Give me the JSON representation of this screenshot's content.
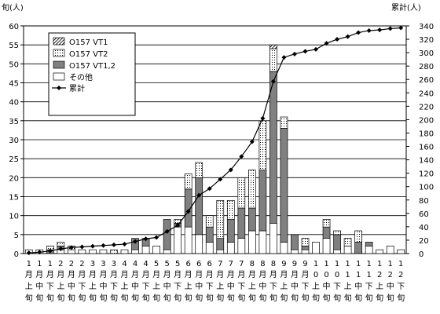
{
  "chart_data": {
    "type": "bar",
    "ylabel_left": "旬(人)",
    "ylabel_right": "累計(人)",
    "ylim_left": [
      0,
      60
    ],
    "ylim_right": [
      0,
      340
    ],
    "yticks_left": [
      "0",
      "5",
      "10",
      "15",
      "20",
      "25",
      "30",
      "35",
      "40",
      "45",
      "50",
      "55",
      "60"
    ],
    "yticks_right": [
      "0",
      "20",
      "40",
      "60",
      "80",
      "100",
      "120",
      "140",
      "160",
      "180",
      "200",
      "220",
      "240",
      "260",
      "280",
      "300",
      "320",
      "340"
    ],
    "categories": [
      [
        "1",
        "月",
        "上",
        "旬"
      ],
      [
        "1",
        "月",
        "中",
        "旬"
      ],
      [
        "1",
        "月",
        "下",
        "旬"
      ],
      [
        "2",
        "月",
        "上",
        "旬"
      ],
      [
        "2",
        "月",
        "中",
        "旬"
      ],
      [
        "2",
        "月",
        "下",
        "旬"
      ],
      [
        "3",
        "月",
        "上",
        "旬"
      ],
      [
        "3",
        "月",
        "中",
        "旬"
      ],
      [
        "3",
        "月",
        "下",
        "旬"
      ],
      [
        "4",
        "月",
        "上",
        "旬"
      ],
      [
        "4",
        "月",
        "中",
        "旬"
      ],
      [
        "4",
        "月",
        "下",
        "旬"
      ],
      [
        "5",
        "月",
        "上",
        "旬"
      ],
      [
        "5",
        "月",
        "中",
        "旬"
      ],
      [
        "5",
        "月",
        "下",
        "旬"
      ],
      [
        "6",
        "月",
        "上",
        "旬"
      ],
      [
        "6",
        "月",
        "中",
        "旬"
      ],
      [
        "6",
        "月",
        "下",
        "旬"
      ],
      [
        "7",
        "月",
        "上",
        "旬"
      ],
      [
        "7",
        "月",
        "中",
        "旬"
      ],
      [
        "7",
        "月",
        "下",
        "旬"
      ],
      [
        "8",
        "月",
        "上",
        "旬"
      ],
      [
        "8",
        "月",
        "中",
        "旬"
      ],
      [
        "8",
        "月",
        "下",
        "旬"
      ],
      [
        "9",
        "月",
        "上",
        "旬"
      ],
      [
        "9",
        "月",
        "中",
        "旬"
      ],
      [
        "9",
        "月",
        "下",
        "旬"
      ],
      [
        "10",
        "月",
        "上",
        "旬"
      ],
      [
        "10",
        "月",
        "中",
        "旬"
      ],
      [
        "10",
        "月",
        "下",
        "旬"
      ],
      [
        "11",
        "月",
        "上",
        "旬"
      ],
      [
        "11",
        "月",
        "中",
        "旬"
      ],
      [
        "11",
        "月",
        "下",
        "旬"
      ],
      [
        "12",
        "月",
        "上",
        "旬"
      ],
      [
        "12",
        "月",
        "中",
        "旬"
      ],
      [
        "12",
        "月",
        "下",
        "旬"
      ]
    ],
    "series": [
      {
        "name": "O157 VT1",
        "pattern": "hatch",
        "values": [
          0,
          0,
          0,
          0,
          0,
          0,
          0,
          0,
          0,
          0,
          0,
          0,
          0,
          0,
          0,
          0,
          0,
          0,
          0,
          0,
          0,
          0,
          0,
          1,
          0,
          0,
          0,
          0,
          0,
          0,
          0,
          0,
          0,
          0,
          0,
          0
        ]
      },
      {
        "name": "O157 VT2",
        "pattern": "dots",
        "values": [
          0,
          0,
          1,
          1,
          1,
          0,
          0,
          0,
          1,
          0,
          0,
          0,
          0,
          0,
          1,
          4,
          4,
          3,
          10,
          5,
          8,
          10,
          13,
          6,
          3,
          0,
          2,
          0,
          2,
          1,
          2,
          3,
          0,
          0,
          0,
          0
        ]
      },
      {
        "name": "O157 VT1,2",
        "pattern": "solid",
        "color": "#808080",
        "values": [
          0,
          0,
          1,
          1,
          0,
          0,
          0,
          0,
          0,
          0,
          3,
          2,
          0,
          8,
          1,
          10,
          15,
          4,
          3,
          6,
          8,
          6,
          16,
          40,
          30,
          4,
          1,
          0,
          3,
          4,
          0,
          3,
          1,
          0,
          0,
          0
        ]
      },
      {
        "name": "その他",
        "pattern": "empty",
        "values": [
          1,
          1,
          0,
          1,
          1,
          1,
          1,
          1,
          0,
          1,
          1,
          2,
          2,
          1,
          7,
          7,
          5,
          3,
          1,
          3,
          4,
          6,
          6,
          8,
          3,
          1,
          1,
          3,
          4,
          1,
          2,
          0,
          2,
          1,
          2,
          1
        ]
      }
    ],
    "cumulative": {
      "name": "累計",
      "axis": "right",
      "values": [
        1,
        2,
        4,
        7,
        9,
        10,
        11,
        12,
        13,
        14,
        18,
        22,
        24,
        33,
        42,
        63,
        87,
        97,
        111,
        125,
        145,
        167,
        202,
        257,
        293,
        298,
        302,
        305,
        314,
        320,
        324,
        330,
        333,
        334,
        336,
        337
      ]
    }
  }
}
